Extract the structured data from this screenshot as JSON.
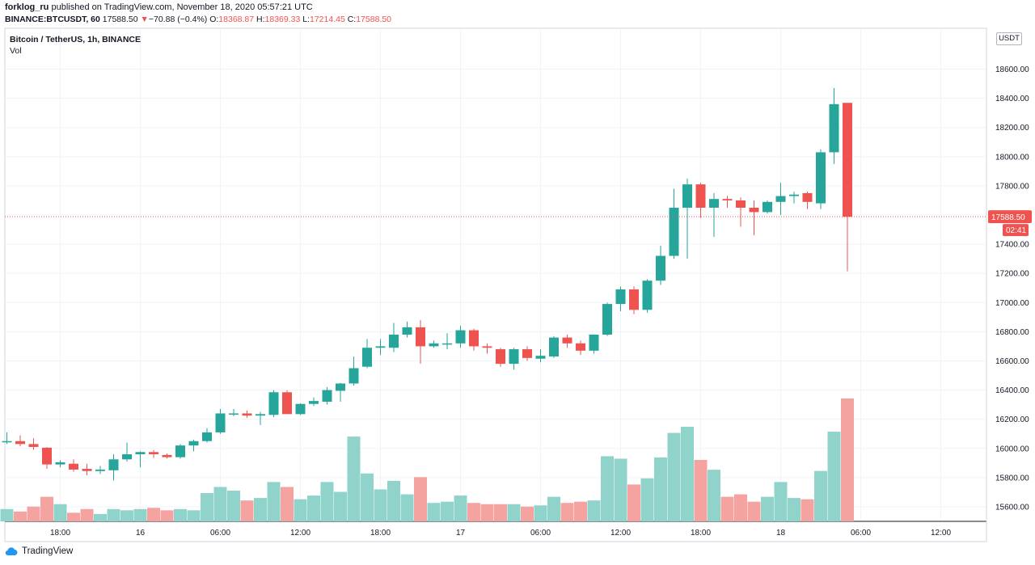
{
  "header": {
    "author": "forklog_ru",
    "published": "published on TradingView.com, November 18, 2020 05:57:21 UTC",
    "symbol": "BINANCE:BTCUSDT, 60",
    "last": "17588.50",
    "change": "−70.88 (−0.4%)",
    "o_label": "O:",
    "o": "18368.87",
    "h_label": "H:",
    "h": "18369.33",
    "l_label": "L:",
    "l": "17214.45",
    "c_label": "C:",
    "c": "17588.50"
  },
  "legend": {
    "series": "Bitcoin / TetherUS, 1h, BINANCE",
    "vol": "Vol"
  },
  "price_axis": {
    "unit": "USDT",
    "current_price": "17588.50",
    "countdown": "02:41"
  },
  "footer": {
    "brand": "TradingView"
  },
  "colors": {
    "up": "#26a69a",
    "down": "#ef5350",
    "vol_up": "#8fd3cb",
    "vol_down": "#f5a3a1",
    "grid": "#f0f3fa"
  },
  "chart_data": {
    "type": "candlestick",
    "title": "Bitcoin / TetherUS, 1h, BINANCE",
    "ylabel": "USDT",
    "ylim": [
      15500,
      18880
    ],
    "yticks": [
      15600,
      15800,
      16000,
      16200,
      16400,
      16600,
      16800,
      17000,
      17200,
      17400,
      17600,
      17800,
      18000,
      18200,
      18400,
      18600
    ],
    "ytick_labels": [
      "15600.00",
      "15800.00",
      "16000.00",
      "16200.00",
      "16400.00",
      "16600.00",
      "16800.00",
      "17000.00",
      "17200.00",
      "17400.00",
      "17600.00",
      "17800.00",
      "18000.00",
      "18200.00",
      "18400.00",
      "18600.00"
    ],
    "xticks": [
      {
        "label": "18:00",
        "index": 4
      },
      {
        "label": "16",
        "index": 10
      },
      {
        "label": "06:00",
        "index": 16
      },
      {
        "label": "12:00",
        "index": 22
      },
      {
        "label": "18:00",
        "index": 28
      },
      {
        "label": "17",
        "index": 34
      },
      {
        "label": "06:00",
        "index": 40
      },
      {
        "label": "12:00",
        "index": 46
      },
      {
        "label": "18:00",
        "index": 52
      },
      {
        "label": "18",
        "index": 58
      },
      {
        "label": "06:00",
        "index": 64
      },
      {
        "label": "12:00",
        "index": 70
      }
    ],
    "candles": [
      {
        "o": 16045,
        "h": 16110,
        "l": 16030,
        "c": 16050,
        "v": 0.1
      },
      {
        "o": 16050,
        "h": 16090,
        "l": 16015,
        "c": 16030,
        "v": 0.08
      },
      {
        "o": 16030,
        "h": 16070,
        "l": 15990,
        "c": 16010,
        "v": 0.12
      },
      {
        "o": 16005,
        "h": 16010,
        "l": 15860,
        "c": 15890,
        "v": 0.2
      },
      {
        "o": 15890,
        "h": 15920,
        "l": 15870,
        "c": 15905,
        "v": 0.14
      },
      {
        "o": 15895,
        "h": 15925,
        "l": 15840,
        "c": 15855,
        "v": 0.07
      },
      {
        "o": 15860,
        "h": 15895,
        "l": 15815,
        "c": 15845,
        "v": 0.1
      },
      {
        "o": 15845,
        "h": 15880,
        "l": 15825,
        "c": 15855,
        "v": 0.06
      },
      {
        "o": 15850,
        "h": 15960,
        "l": 15780,
        "c": 15925,
        "v": 0.1
      },
      {
        "o": 15925,
        "h": 16040,
        "l": 15910,
        "c": 15960,
        "v": 0.09
      },
      {
        "o": 15960,
        "h": 15980,
        "l": 15870,
        "c": 15975,
        "v": 0.1
      },
      {
        "o": 15975,
        "h": 15990,
        "l": 15935,
        "c": 15960,
        "v": 0.11
      },
      {
        "o": 15955,
        "h": 15965,
        "l": 15930,
        "c": 15940,
        "v": 0.09
      },
      {
        "o": 15940,
        "h": 16030,
        "l": 15930,
        "c": 16020,
        "v": 0.1
      },
      {
        "o": 16020,
        "h": 16060,
        "l": 15980,
        "c": 16050,
        "v": 0.09
      },
      {
        "o": 16050,
        "h": 16140,
        "l": 16040,
        "c": 16110,
        "v": 0.23
      },
      {
        "o": 16110,
        "h": 16270,
        "l": 16100,
        "c": 16240,
        "v": 0.28
      },
      {
        "o": 16240,
        "h": 16270,
        "l": 16220,
        "c": 16240,
        "v": 0.25
      },
      {
        "o": 16240,
        "h": 16260,
        "l": 16210,
        "c": 16225,
        "v": 0.17
      },
      {
        "o": 16225,
        "h": 16250,
        "l": 16160,
        "c": 16235,
        "v": 0.19
      },
      {
        "o": 16230,
        "h": 16400,
        "l": 16215,
        "c": 16385,
        "v": 0.32
      },
      {
        "o": 16385,
        "h": 16400,
        "l": 16240,
        "c": 16235,
        "v": 0.28
      },
      {
        "o": 16235,
        "h": 16310,
        "l": 16230,
        "c": 16305,
        "v": 0.18
      },
      {
        "o": 16305,
        "h": 16350,
        "l": 16290,
        "c": 16325,
        "v": 0.21
      },
      {
        "o": 16320,
        "h": 16420,
        "l": 16300,
        "c": 16400,
        "v": 0.32
      },
      {
        "o": 16395,
        "h": 16450,
        "l": 16320,
        "c": 16445,
        "v": 0.24
      },
      {
        "o": 16445,
        "h": 16630,
        "l": 16430,
        "c": 16550,
        "v": 0.69
      },
      {
        "o": 16560,
        "h": 16750,
        "l": 16550,
        "c": 16690,
        "v": 0.39
      },
      {
        "o": 16690,
        "h": 16750,
        "l": 16640,
        "c": 16700,
        "v": 0.26
      },
      {
        "o": 16690,
        "h": 16860,
        "l": 16660,
        "c": 16780,
        "v": 0.33
      },
      {
        "o": 16780,
        "h": 16870,
        "l": 16760,
        "c": 16830,
        "v": 0.22
      },
      {
        "o": 16830,
        "h": 16880,
        "l": 16580,
        "c": 16700,
        "v": 0.36
      },
      {
        "o": 16700,
        "h": 16740,
        "l": 16690,
        "c": 16720,
        "v": 0.15
      },
      {
        "o": 16715,
        "h": 16790,
        "l": 16680,
        "c": 16720,
        "v": 0.16
      },
      {
        "o": 16720,
        "h": 16840,
        "l": 16690,
        "c": 16810,
        "v": 0.21
      },
      {
        "o": 16810,
        "h": 16820,
        "l": 16670,
        "c": 16700,
        "v": 0.15
      },
      {
        "o": 16700,
        "h": 16720,
        "l": 16650,
        "c": 16690,
        "v": 0.14
      },
      {
        "o": 16680,
        "h": 16690,
        "l": 16560,
        "c": 16580,
        "v": 0.14
      },
      {
        "o": 16580,
        "h": 16690,
        "l": 16540,
        "c": 16680,
        "v": 0.14
      },
      {
        "o": 16680,
        "h": 16700,
        "l": 16600,
        "c": 16620,
        "v": 0.12
      },
      {
        "o": 16615,
        "h": 16680,
        "l": 16590,
        "c": 16635,
        "v": 0.13
      },
      {
        "o": 16630,
        "h": 16770,
        "l": 16620,
        "c": 16760,
        "v": 0.2
      },
      {
        "o": 16760,
        "h": 16780,
        "l": 16690,
        "c": 16720,
        "v": 0.15
      },
      {
        "o": 16720,
        "h": 16740,
        "l": 16640,
        "c": 16670,
        "v": 0.16
      },
      {
        "o": 16670,
        "h": 16780,
        "l": 16650,
        "c": 16780,
        "v": 0.17
      },
      {
        "o": 16780,
        "h": 17000,
        "l": 16770,
        "c": 16990,
        "v": 0.53
      },
      {
        "o": 16990,
        "h": 17110,
        "l": 16940,
        "c": 17090,
        "v": 0.51
      },
      {
        "o": 17090,
        "h": 17110,
        "l": 16920,
        "c": 16950,
        "v": 0.3
      },
      {
        "o": 16950,
        "h": 17160,
        "l": 16930,
        "c": 17150,
        "v": 0.35
      },
      {
        "o": 17150,
        "h": 17390,
        "l": 17120,
        "c": 17320,
        "v": 0.52
      },
      {
        "o": 17320,
        "h": 17780,
        "l": 17300,
        "c": 17650,
        "v": 0.72
      },
      {
        "o": 17650,
        "h": 17850,
        "l": 17300,
        "c": 17810,
        "v": 0.77
      },
      {
        "o": 17810,
        "h": 17820,
        "l": 17580,
        "c": 17650,
        "v": 0.5
      },
      {
        "o": 17650,
        "h": 17750,
        "l": 17450,
        "c": 17710,
        "v": 0.42
      },
      {
        "o": 17710,
        "h": 17730,
        "l": 17650,
        "c": 17700,
        "v": 0.2
      },
      {
        "o": 17700,
        "h": 17720,
        "l": 17520,
        "c": 17650,
        "v": 0.22
      },
      {
        "o": 17650,
        "h": 17700,
        "l": 17460,
        "c": 17620,
        "v": 0.16
      },
      {
        "o": 17620,
        "h": 17700,
        "l": 17610,
        "c": 17690,
        "v": 0.2
      },
      {
        "o": 17690,
        "h": 17820,
        "l": 17600,
        "c": 17730,
        "v": 0.32
      },
      {
        "o": 17730,
        "h": 17760,
        "l": 17680,
        "c": 17740,
        "v": 0.19
      },
      {
        "o": 17750,
        "h": 17760,
        "l": 17640,
        "c": 17690,
        "v": 0.18
      },
      {
        "o": 17680,
        "h": 18050,
        "l": 17640,
        "c": 18030,
        "v": 0.41
      },
      {
        "o": 18030,
        "h": 18470,
        "l": 17950,
        "c": 18360,
        "v": 0.73
      },
      {
        "o": 18369,
        "h": 18369,
        "l": 17214,
        "c": 17588,
        "v": 1.0
      }
    ]
  }
}
